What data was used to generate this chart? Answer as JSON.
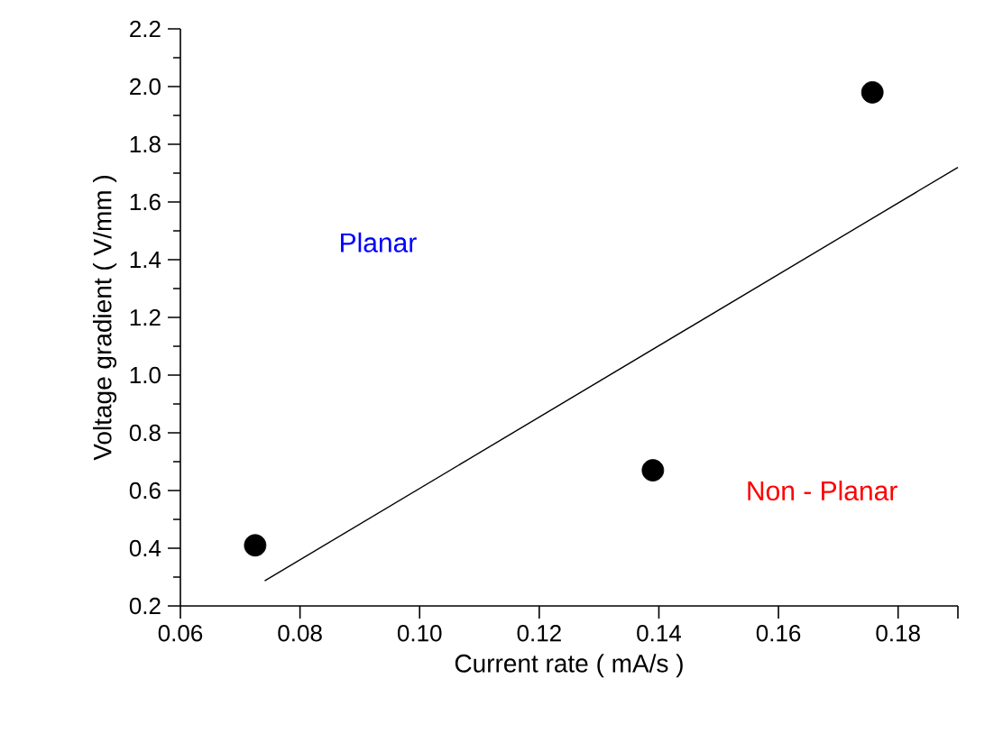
{
  "chart_data": {
    "type": "scatter",
    "xlabel": "Current rate ( mA/s )",
    "ylabel": "Voltage gradient ( V/mm )",
    "xlim": [
      0.06,
      0.19
    ],
    "ylim": [
      0.2,
      2.2
    ],
    "xticks": [
      0.06,
      0.08,
      {
        "value": 0.1,
        "label": "0.10"
      },
      0.12,
      0.14,
      0.16,
      0.18,
      {
        "value": 0.19,
        "label": null
      }
    ],
    "yticks": [
      0.2,
      0.4,
      0.6,
      0.8,
      {
        "value": 1,
        "label": "1.0"
      },
      1.2,
      1.4,
      1.6,
      1.8,
      {
        "value": 2,
        "label": "2.0"
      },
      2.2
    ],
    "grid": false,
    "series": [
      {
        "color": "#000000",
        "x": [
          0.0725,
          0.139,
          0.1757
        ],
        "values": [
          0.41,
          0.67,
          1.98
        ]
      },
      {
        "type": "line",
        "color": "#000000",
        "line_style": "solid",
        "x": [
          0.0741,
          0.19
        ],
        "values": [
          0.287,
          1.72
        ]
      }
    ],
    "annotations": [
      "Planar",
      "Non - Planar"
    ]
  }
}
